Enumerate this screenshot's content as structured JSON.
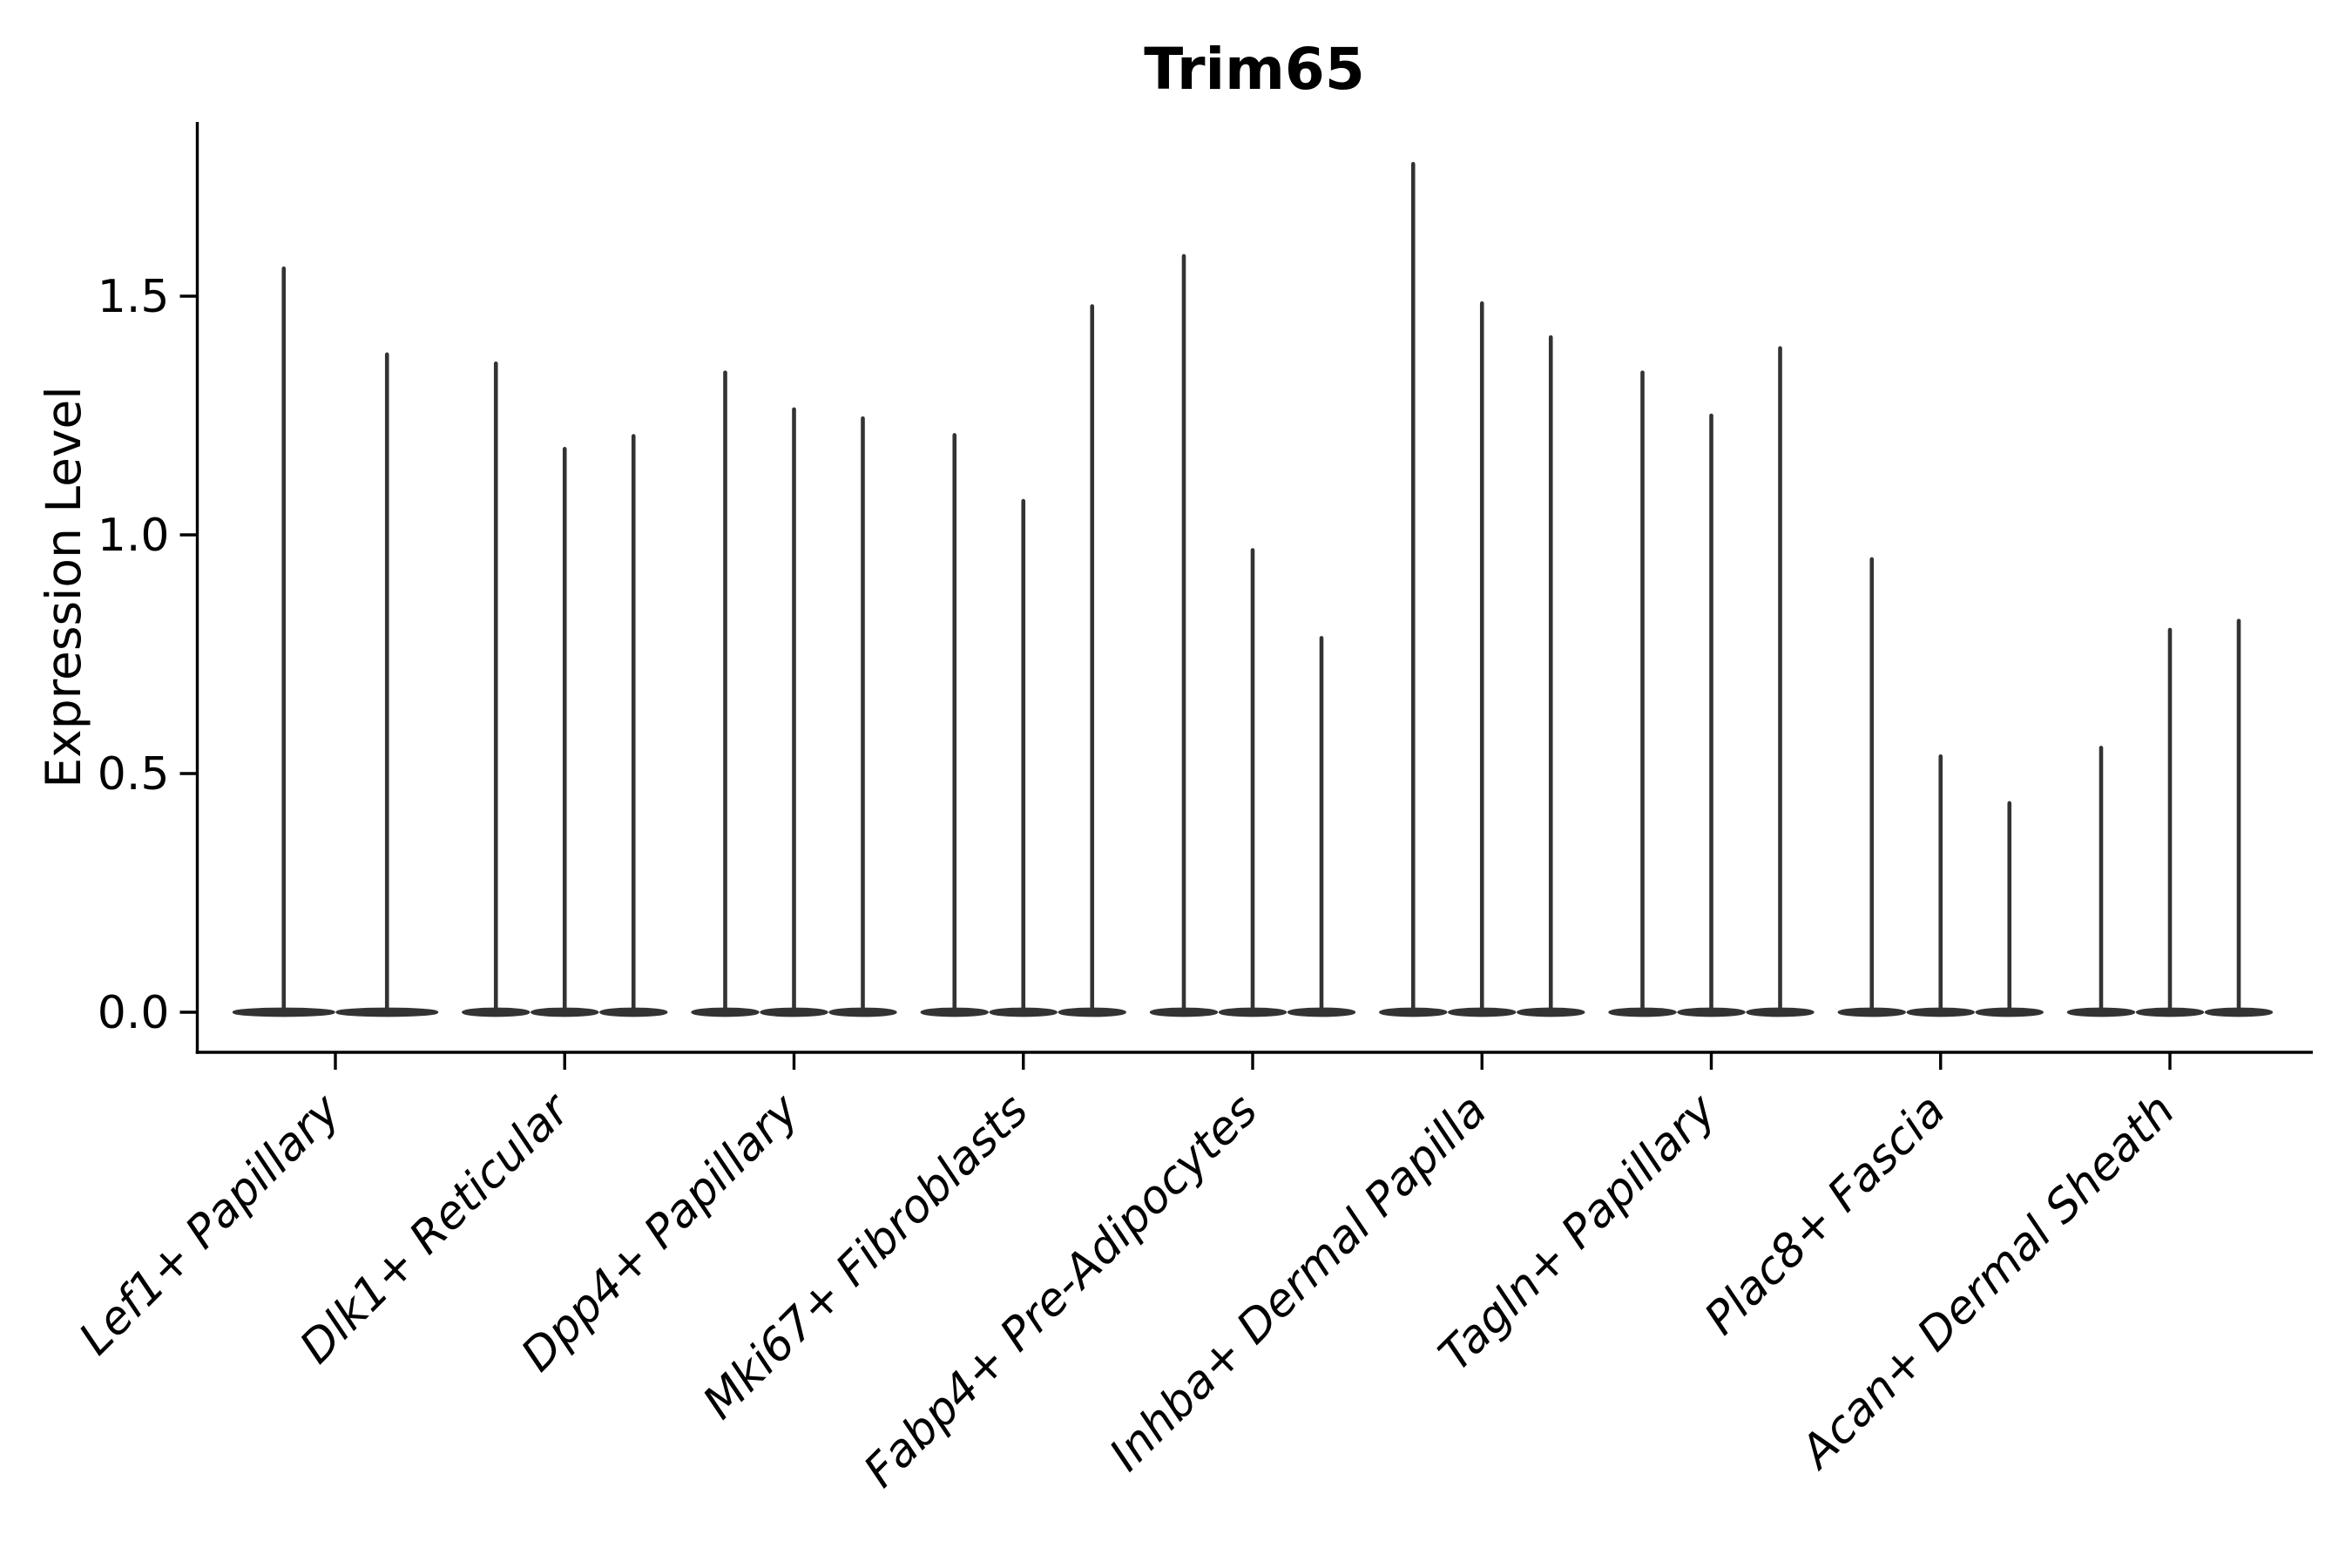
{
  "figure": {
    "title": "Trim65",
    "ylabel": "Expression Level"
  },
  "chart_data": {
    "type": "violin",
    "title": "Trim65",
    "xlabel": "",
    "ylabel": "Expression Level",
    "grid": false,
    "legend": "none",
    "ylim": [
      -0.08,
      1.86
    ],
    "yticks": [
      0.0,
      0.5,
      1.0,
      1.5
    ],
    "ytick_labels": [
      "0.0",
      "0.5",
      "1.0",
      "1.5"
    ],
    "tick_rotation": 45,
    "categories": [
      "Lef1+ Papillary",
      "Dlk1+ Reticular",
      "Dpp4+ Papillary",
      "Mki67+ Fibroblasts",
      "Fabp4+ Pre-Adipocytes",
      "Inhba+ Dermal Papilla",
      "Tagln+ Papillary",
      "Plac8+ Fascia",
      "Acan+ Dermal Sheath"
    ],
    "series": [
      {
        "category": "Lef1+ Papillary",
        "violin_peaks": [
          1.558,
          1.378
        ]
      },
      {
        "category": "Dlk1+ Reticular",
        "violin_peaks": [
          1.359,
          1.18,
          1.207
        ]
      },
      {
        "category": "Dpp4+ Papillary",
        "violin_peaks": [
          1.34,
          1.263,
          1.244
        ]
      },
      {
        "category": "Mki67+ Fibroblasts",
        "violin_peaks": [
          1.209,
          1.071,
          1.479
        ]
      },
      {
        "category": "Fabp4+ Pre-Adipocytes",
        "violin_peaks": [
          1.584,
          0.968,
          0.784
        ]
      },
      {
        "category": "Inhba+ Dermal Papilla",
        "violin_peaks": [
          1.777,
          1.485,
          1.414
        ]
      },
      {
        "category": "Tagln+ Papillary",
        "violin_peaks": [
          1.34,
          1.25,
          1.391
        ]
      },
      {
        "category": "Plac8+ Fascia",
        "violin_peaks": [
          0.949,
          0.536,
          0.438
        ]
      },
      {
        "category": "Acan+ Dermal Sheath",
        "violin_peaks": [
          0.554,
          0.801,
          0.82
        ]
      }
    ],
    "baseline_value": 0.0,
    "colors": {
      "violin": "#333333",
      "axis": "#000000",
      "text": "#000000",
      "background": "#ffffff"
    }
  }
}
